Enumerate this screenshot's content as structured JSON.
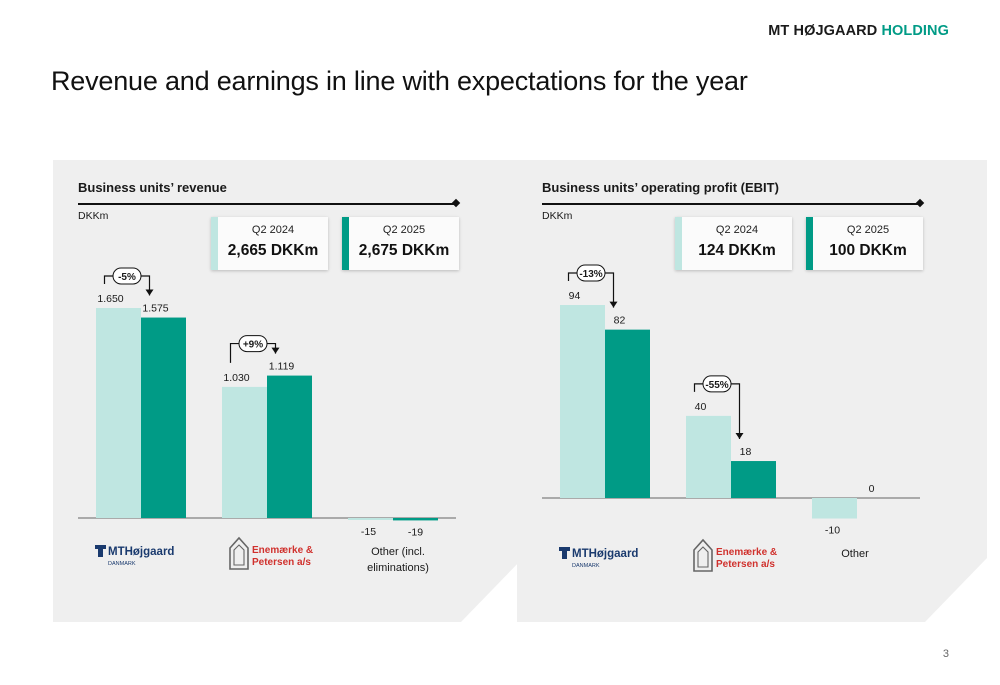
{
  "header": {
    "brand_part1": "MT HØJGAARD",
    "brand_part2": "HOLDING",
    "title": "Revenue and earnings in line with expectations for the year"
  },
  "page_number": "3",
  "colors": {
    "q2_2024": "#bfe6e1",
    "q2_2025": "#009b86",
    "panel_bg": "#efefef",
    "accent_red": "#d0312d",
    "navy": "#1a3a6e"
  },
  "logos": {
    "mth_name": "MTHøjgaard",
    "mth_sub": "DANMARK",
    "ep_line1": "Enemærke &",
    "ep_line2": "Petersen a/s"
  },
  "panels": [
    {
      "title": "Business units’ revenue",
      "unit": "DKKm",
      "kpis": [
        {
          "period": "Q2 2024",
          "value": "2,665 DKKm"
        },
        {
          "period": "Q2 2025",
          "value": "2,675 DKKm"
        }
      ],
      "categories": [
        {
          "logo": "mth",
          "label": "",
          "values": [
            1650,
            1575
          ],
          "labels": [
            "1.650",
            "1.575"
          ],
          "change": "-5%"
        },
        {
          "logo": "ep",
          "label": "",
          "values": [
            1030,
            1119
          ],
          "labels": [
            "1.030",
            "1.119"
          ],
          "change": "+9%"
        },
        {
          "logo": "",
          "label": "Other (incl.\neliminations)",
          "values": [
            -15,
            -19
          ],
          "labels": [
            "-15",
            "-19"
          ],
          "change": ""
        }
      ]
    },
    {
      "title": "Business units’ operating profit (EBIT)",
      "unit": "DKKm",
      "kpis": [
        {
          "period": "Q2 2024",
          "value": "124 DKKm"
        },
        {
          "period": "Q2 2025",
          "value": "100 DKKm"
        }
      ],
      "categories": [
        {
          "logo": "mth",
          "label": "",
          "values": [
            94,
            82
          ],
          "labels": [
            "94",
            "82"
          ],
          "change": "-13%"
        },
        {
          "logo": "ep",
          "label": "",
          "values": [
            40,
            18
          ],
          "labels": [
            "40",
            "18"
          ],
          "change": "-55%"
        },
        {
          "logo": "",
          "label": "Other",
          "values": [
            -10,
            0
          ],
          "labels": [
            "-10",
            "0"
          ],
          "change": ""
        }
      ]
    }
  ],
  "chart_data": [
    {
      "type": "bar",
      "title": "Business units’ revenue",
      "ylabel": "DKKm",
      "categories": [
        "MT Højgaard Danmark",
        "Enemærke & Petersen a/s",
        "Other (incl. eliminations)"
      ],
      "series": [
        {
          "name": "Q2 2024",
          "values": [
            1650,
            1030,
            -15
          ]
        },
        {
          "name": "Q2 2025",
          "values": [
            1575,
            1119,
            -19
          ]
        }
      ],
      "annotations": [
        "-5%",
        "+9%"
      ],
      "totals": {
        "Q2 2024": "2,665 DKKm",
        "Q2 2025": "2,675 DKKm"
      }
    },
    {
      "type": "bar",
      "title": "Business units’ operating profit (EBIT)",
      "ylabel": "DKKm",
      "categories": [
        "MT Højgaard Danmark",
        "Enemærke & Petersen a/s",
        "Other"
      ],
      "series": [
        {
          "name": "Q2 2024",
          "values": [
            94,
            40,
            -10
          ]
        },
        {
          "name": "Q2 2025",
          "values": [
            82,
            18,
            0
          ]
        }
      ],
      "annotations": [
        "-13%",
        "-55%"
      ],
      "totals": {
        "Q2 2024": "124 DKKm",
        "Q2 2025": "100 DKKm"
      }
    }
  ]
}
